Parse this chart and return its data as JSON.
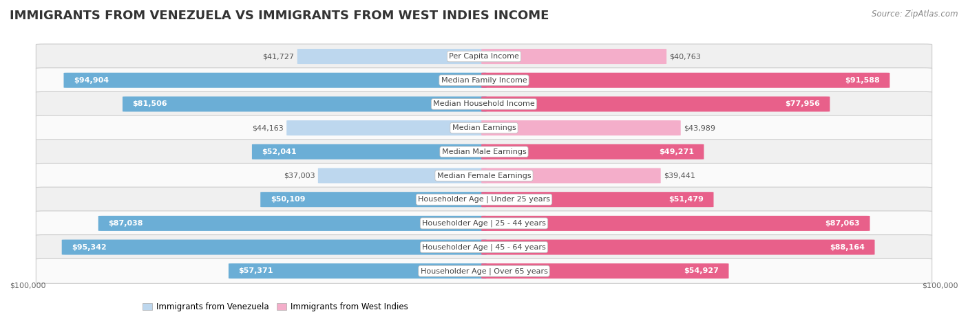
{
  "title": "IMMIGRANTS FROM VENEZUELA VS IMMIGRANTS FROM WEST INDIES INCOME",
  "source": "Source: ZipAtlas.com",
  "categories": [
    "Per Capita Income",
    "Median Family Income",
    "Median Household Income",
    "Median Earnings",
    "Median Male Earnings",
    "Median Female Earnings",
    "Householder Age | Under 25 years",
    "Householder Age | 25 - 44 years",
    "Householder Age | 45 - 64 years",
    "Householder Age | Over 65 years"
  ],
  "venezuela_values": [
    41727,
    94904,
    81506,
    44163,
    52041,
    37003,
    50109,
    87038,
    95342,
    57371
  ],
  "west_indies_values": [
    40763,
    91588,
    77956,
    43989,
    49271,
    39441,
    51479,
    87063,
    88164,
    54927
  ],
  "max_value": 100000,
  "venezuela_color_dark": "#6BAED6",
  "venezuela_color_light": "#BDD7EE",
  "west_indies_color_dark": "#E8608A",
  "west_indies_color_light": "#F4AECA",
  "label_in_bar_color": "#ffffff",
  "label_outside_bar_color": "#555555",
  "row_bg_odd": "#f0f0f0",
  "row_bg_even": "#fafafa",
  "center_label_bg": "#ffffff",
  "center_label_color": "#444444",
  "border_color": "#cccccc",
  "title_fontsize": 13,
  "source_fontsize": 8.5,
  "value_fontsize": 8,
  "category_fontsize": 8,
  "legend_fontsize": 8.5,
  "xlabel_left": "$100,000",
  "xlabel_right": "$100,000",
  "in_bar_threshold": 0.45
}
